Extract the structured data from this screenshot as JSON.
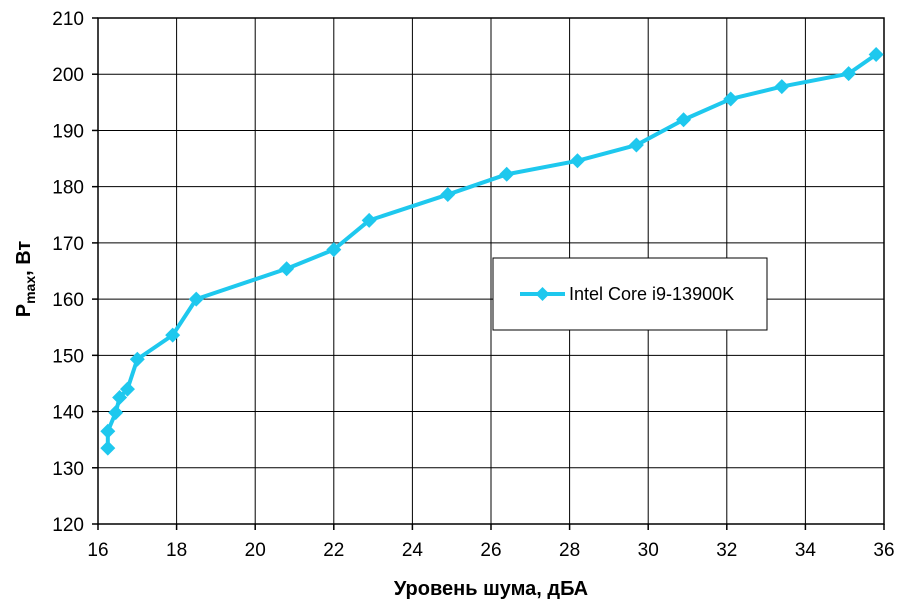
{
  "chart_data": {
    "type": "line",
    "title": "",
    "xlabel": "Уровень шума, дБА",
    "ylabel": {
      "main": "P",
      "subscript": "max",
      "suffix": ", Вт"
    },
    "xlim": [
      16,
      36
    ],
    "ylim": [
      120,
      210
    ],
    "x_ticks": [
      16,
      18,
      20,
      22,
      24,
      26,
      28,
      30,
      32,
      34,
      36
    ],
    "y_ticks": [
      120,
      130,
      140,
      150,
      160,
      170,
      180,
      190,
      200,
      210
    ],
    "grid": true,
    "legend_position": "center-right",
    "series": [
      {
        "name": "Intel Core i9-13900K",
        "color": "#1EC8EE",
        "marker": "diamond",
        "x": [
          16.25,
          16.25,
          16.45,
          16.55,
          16.75,
          17.0,
          17.9,
          18.5,
          20.8,
          22.0,
          22.9,
          24.9,
          26.4,
          28.2,
          29.7,
          30.9,
          32.1,
          33.4,
          35.1,
          35.8
        ],
        "y": [
          133.5,
          136.5,
          139.8,
          142.5,
          144.0,
          149.3,
          153.6,
          160.0,
          165.4,
          168.8,
          174.0,
          178.6,
          182.2,
          184.6,
          187.4,
          191.9,
          195.6,
          197.8,
          200.1,
          203.5
        ]
      }
    ]
  }
}
